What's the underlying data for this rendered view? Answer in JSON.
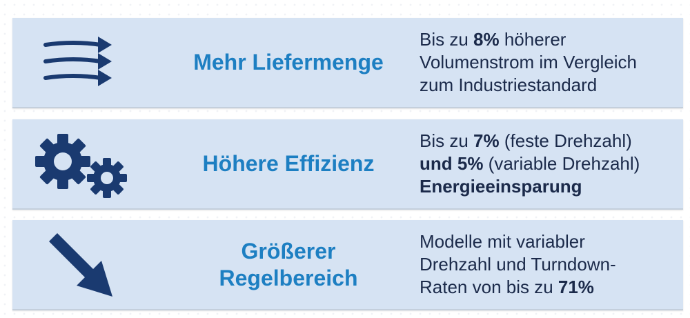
{
  "rows": [
    {
      "icon": "flow-arrows-icon",
      "title_lines": [
        "Mehr Liefermenge"
      ],
      "desc": {
        "l1_pre": "Bis zu ",
        "l1_bold": "8%",
        "l1_post": " höherer",
        "l2": "Volumenstrom im Vergleich",
        "l3": "zum Industriestandard"
      }
    },
    {
      "icon": "gears-icon",
      "title_lines": [
        "Höhere Effizienz"
      ],
      "desc": {
        "l1_pre": "Bis zu ",
        "l1_bold": "7%",
        "l1_post": " (feste Drehzahl)",
        "l2_bold": "und 5%",
        "l2_post": " (variable Drehzahl)",
        "l3_bold": "Energieeinsparung"
      }
    },
    {
      "icon": "diagonal-arrow-icon",
      "title_lines": [
        "Größerer",
        "Regelbereich"
      ],
      "desc": {
        "l1": "Modelle mit variabler",
        "l2": "Drehzahl und Turndown-",
        "l3_pre": "Raten von bis zu ",
        "l3_bold": "71%"
      }
    }
  ],
  "colors": {
    "panel_bg": "#d6e3f3",
    "title": "#1d7fc2",
    "text": "#1b2a4a",
    "icon": "#1a3a70"
  }
}
